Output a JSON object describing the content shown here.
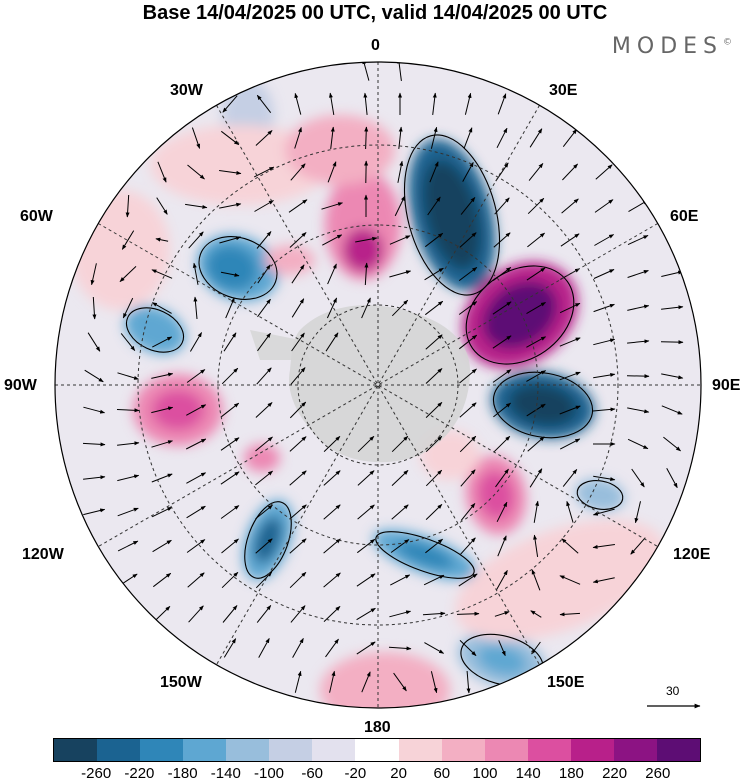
{
  "title": "Base 14/04/2025 00 UTC, valid 14/04/2025 00 UTC",
  "brand": "MODES",
  "brand_mark": "©",
  "longitude_labels": {
    "lon_0": "0",
    "lon_30e": "30E",
    "lon_60e": "60E",
    "lon_90e": "90E",
    "lon_120e": "120E",
    "lon_150e": "150E",
    "lon_180": "180",
    "lon_150w": "150W",
    "lon_120w": "120W",
    "lon_90w": "90W",
    "lon_60w": "60W",
    "lon_30w": "30W"
  },
  "vector_reference": {
    "value": "30"
  },
  "colorbar": {
    "colors": [
      "#17425f",
      "#1b6391",
      "#2f86b8",
      "#5ea7d2",
      "#98bedc",
      "#c5cfe4",
      "#e3e1ee",
      "#ffffff",
      "#f7d3d8",
      "#f3afc3",
      "#ec88b3",
      "#dc4fa0",
      "#b8208a",
      "#8c1383",
      "#5d0d74"
    ],
    "ticks": [
      "-260",
      "-220",
      "-180",
      "-140",
      "-100",
      "-60",
      "-20",
      "20",
      "60",
      "100",
      "140",
      "180",
      "220",
      "260"
    ]
  },
  "colors": {
    "land_gray": "#cccccc",
    "neutral_background": "#e6e3ee"
  },
  "icons": {
    "vector_arrow": "arrow-icon"
  }
}
